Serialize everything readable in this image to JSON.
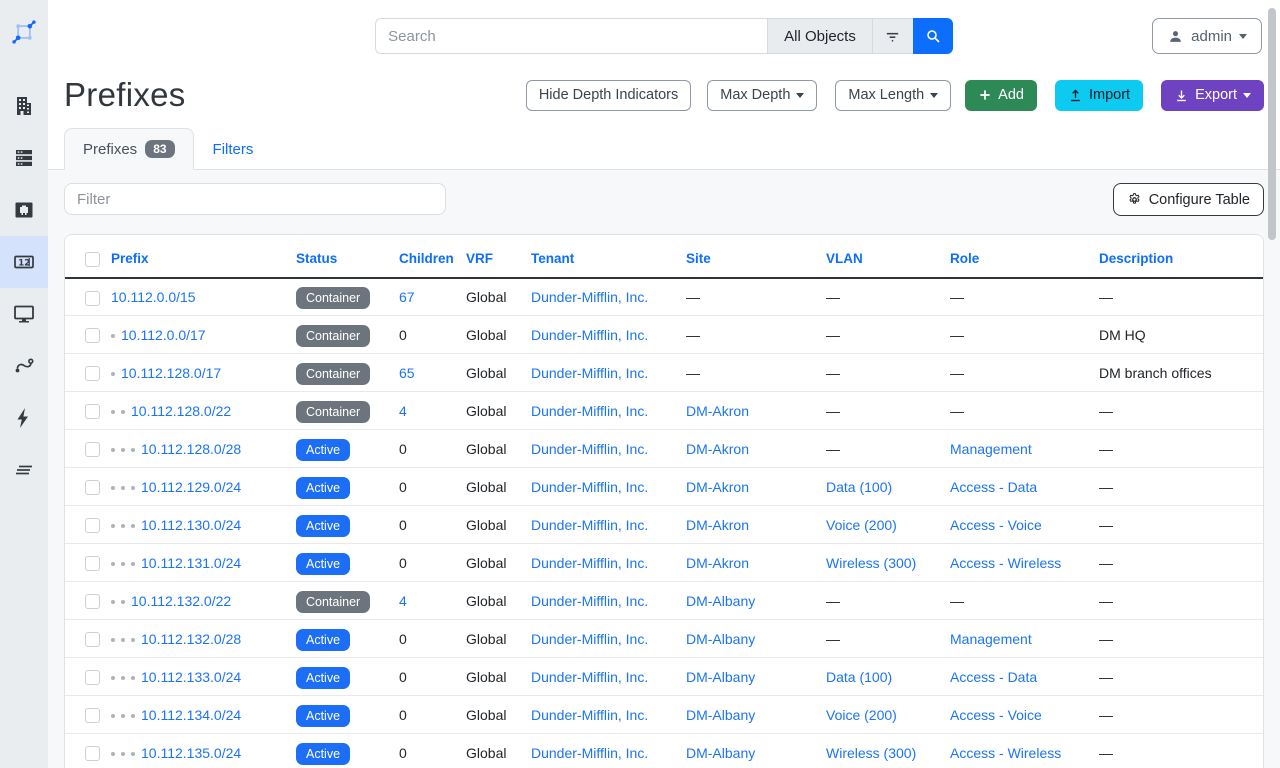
{
  "topbar": {
    "search_placeholder": "Search",
    "scope_button": "All Objects",
    "user": "admin"
  },
  "page": {
    "title": "Prefixes",
    "actions": {
      "hide_depth": "Hide Depth Indicators",
      "max_depth": "Max Depth",
      "max_length": "Max Length",
      "add": "Add",
      "import": "Import",
      "export": "Export"
    },
    "tabs": {
      "prefixes_label": "Prefixes",
      "prefixes_count": "83",
      "filters_label": "Filters"
    },
    "filter_placeholder": "Filter",
    "configure_table": "Configure Table"
  },
  "sidebar": {
    "items": [
      "netbox-logo",
      "organization",
      "devices",
      "connections",
      "ipam",
      "virtualization",
      "circuits",
      "power",
      "provider-networks"
    ]
  },
  "colors": {
    "accent": "#0d6efd",
    "link": "#1b74f6",
    "status": {
      "Container": "#6c757d",
      "Active": "#1b6ef5"
    },
    "add_button": "#2d8a56",
    "import_button": "#0dcaf0",
    "export_button": "#6f42c1",
    "sidebar_active_bg": "#d4e2fb"
  },
  "table": {
    "empty_placeholder": "—",
    "columns": [
      "Prefix",
      "Status",
      "Children",
      "VRF",
      "Tenant",
      "Site",
      "VLAN",
      "Role",
      "Description"
    ],
    "rows": [
      {
        "depth": 0,
        "prefix": "10.112.0.0/15",
        "status": "Container",
        "children": "67",
        "children_link": true,
        "vrf": "Global",
        "tenant": "Dunder-Mifflin, Inc.",
        "site": "",
        "vlan": "",
        "role": "",
        "description": ""
      },
      {
        "depth": 1,
        "prefix": "10.112.0.0/17",
        "status": "Container",
        "children": "0",
        "children_link": false,
        "vrf": "Global",
        "tenant": "Dunder-Mifflin, Inc.",
        "site": "",
        "vlan": "",
        "role": "",
        "description": "DM HQ"
      },
      {
        "depth": 1,
        "prefix": "10.112.128.0/17",
        "status": "Container",
        "children": "65",
        "children_link": true,
        "vrf": "Global",
        "tenant": "Dunder-Mifflin, Inc.",
        "site": "",
        "vlan": "",
        "role": "",
        "description": "DM branch offices"
      },
      {
        "depth": 2,
        "prefix": "10.112.128.0/22",
        "status": "Container",
        "children": "4",
        "children_link": true,
        "vrf": "Global",
        "tenant": "Dunder-Mifflin, Inc.",
        "site": "DM-Akron",
        "vlan": "",
        "role": "",
        "description": ""
      },
      {
        "depth": 3,
        "prefix": "10.112.128.0/28",
        "status": "Active",
        "children": "0",
        "children_link": false,
        "vrf": "Global",
        "tenant": "Dunder-Mifflin, Inc.",
        "site": "DM-Akron",
        "vlan": "",
        "role": "Management",
        "description": ""
      },
      {
        "depth": 3,
        "prefix": "10.112.129.0/24",
        "status": "Active",
        "children": "0",
        "children_link": false,
        "vrf": "Global",
        "tenant": "Dunder-Mifflin, Inc.",
        "site": "DM-Akron",
        "vlan": "Data (100)",
        "role": "Access - Data",
        "description": ""
      },
      {
        "depth": 3,
        "prefix": "10.112.130.0/24",
        "status": "Active",
        "children": "0",
        "children_link": false,
        "vrf": "Global",
        "tenant": "Dunder-Mifflin, Inc.",
        "site": "DM-Akron",
        "vlan": "Voice (200)",
        "role": "Access - Voice",
        "description": ""
      },
      {
        "depth": 3,
        "prefix": "10.112.131.0/24",
        "status": "Active",
        "children": "0",
        "children_link": false,
        "vrf": "Global",
        "tenant": "Dunder-Mifflin, Inc.",
        "site": "DM-Akron",
        "vlan": "Wireless (300)",
        "role": "Access - Wireless",
        "description": ""
      },
      {
        "depth": 2,
        "prefix": "10.112.132.0/22",
        "status": "Container",
        "children": "4",
        "children_link": true,
        "vrf": "Global",
        "tenant": "Dunder-Mifflin, Inc.",
        "site": "DM-Albany",
        "vlan": "",
        "role": "",
        "description": ""
      },
      {
        "depth": 3,
        "prefix": "10.112.132.0/28",
        "status": "Active",
        "children": "0",
        "children_link": false,
        "vrf": "Global",
        "tenant": "Dunder-Mifflin, Inc.",
        "site": "DM-Albany",
        "vlan": "",
        "role": "Management",
        "description": ""
      },
      {
        "depth": 3,
        "prefix": "10.112.133.0/24",
        "status": "Active",
        "children": "0",
        "children_link": false,
        "vrf": "Global",
        "tenant": "Dunder-Mifflin, Inc.",
        "site": "DM-Albany",
        "vlan": "Data (100)",
        "role": "Access - Data",
        "description": ""
      },
      {
        "depth": 3,
        "prefix": "10.112.134.0/24",
        "status": "Active",
        "children": "0",
        "children_link": false,
        "vrf": "Global",
        "tenant": "Dunder-Mifflin, Inc.",
        "site": "DM-Albany",
        "vlan": "Voice (200)",
        "role": "Access - Voice",
        "description": ""
      },
      {
        "depth": 3,
        "prefix": "10.112.135.0/24",
        "status": "Active",
        "children": "0",
        "children_link": false,
        "vrf": "Global",
        "tenant": "Dunder-Mifflin, Inc.",
        "site": "DM-Albany",
        "vlan": "Wireless (300)",
        "role": "Access - Wireless",
        "description": ""
      }
    ]
  }
}
